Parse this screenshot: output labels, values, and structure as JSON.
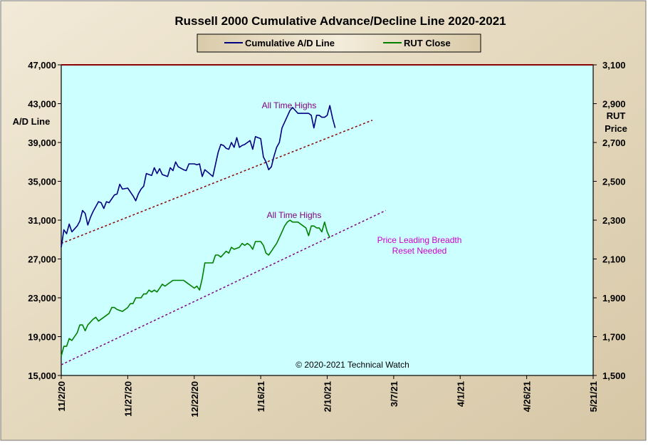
{
  "chart_data": {
    "type": "line",
    "title": "Russell 2000 Cumulative Advance/Decline Line 2020-2021",
    "ylabel_left": "A/D Line",
    "ylabel_right_line1": "RUT",
    "ylabel_right_line2": "Price",
    "ylim_left": [
      15000,
      47000
    ],
    "ylim_right": [
      1500,
      3100
    ],
    "yticks_left": [
      "15,000",
      "19,000",
      "23,000",
      "27,000",
      "31,000",
      "35,000",
      "39,000",
      "43,000",
      "47,000"
    ],
    "yticks_right": [
      "1,500",
      "1,700",
      "1,900",
      "2,100",
      "2,300",
      "2,500",
      "2,700",
      "2,900",
      "3,100"
    ],
    "xticks": [
      "11/2/20",
      "11/27/20",
      "12/22/20",
      "1/16/21",
      "2/10/21",
      "3/7/21",
      "4/1/21",
      "4/26/21",
      "5/21/21"
    ],
    "xlim_days": [
      0,
      200
    ],
    "legend": {
      "ad_label": "Cumulative A/D Line",
      "rut_label": "RUT Close",
      "ad_color": "#000080",
      "rut_color": "#008000"
    },
    "colors": {
      "plot_bg": "#ccffff",
      "frame_bg": "#e9dfc8",
      "topline": "#8b0000",
      "trend_ad": "#8b0000",
      "trend_rut": "#800080",
      "annot_purple": "#800080",
      "annot_magenta": "#cc00cc"
    },
    "series": [
      {
        "name": "Cumulative A/D Line",
        "axis": "left",
        "points": [
          [
            0,
            28200
          ],
          [
            1,
            30000
          ],
          [
            2,
            29600
          ],
          [
            3,
            30600
          ],
          [
            4,
            29800
          ],
          [
            6,
            30400
          ],
          [
            7,
            30900
          ],
          [
            8,
            32000
          ],
          [
            9,
            31700
          ],
          [
            10,
            30500
          ],
          [
            11,
            31300
          ],
          [
            12,
            31900
          ],
          [
            14,
            32900
          ],
          [
            15,
            32800
          ],
          [
            16,
            32200
          ],
          [
            17,
            32900
          ],
          [
            18,
            32800
          ],
          [
            20,
            33600
          ],
          [
            21,
            33700
          ],
          [
            22,
            34700
          ],
          [
            23,
            34200
          ],
          [
            25,
            34300
          ],
          [
            27,
            33500
          ],
          [
            28,
            33000
          ],
          [
            29,
            33700
          ],
          [
            30,
            34200
          ],
          [
            31,
            34500
          ],
          [
            32,
            35800
          ],
          [
            33,
            35700
          ],
          [
            34,
            35600
          ],
          [
            35,
            36400
          ],
          [
            36,
            35800
          ],
          [
            37,
            36300
          ],
          [
            38,
            35700
          ],
          [
            40,
            35500
          ],
          [
            41,
            36400
          ],
          [
            42,
            36100
          ],
          [
            43,
            37000
          ],
          [
            44,
            36500
          ],
          [
            46,
            36200
          ],
          [
            47,
            36100
          ],
          [
            48,
            36800
          ],
          [
            50,
            36800
          ],
          [
            51,
            36700
          ],
          [
            52,
            36800
          ],
          [
            53,
            35500
          ],
          [
            54,
            36200
          ],
          [
            57,
            35500
          ],
          [
            59,
            38000
          ],
          [
            60,
            38800
          ],
          [
            61,
            38700
          ],
          [
            62,
            38400
          ],
          [
            63,
            38300
          ],
          [
            64,
            39000
          ],
          [
            65,
            38500
          ],
          [
            66,
            39500
          ],
          [
            67,
            38500
          ],
          [
            68,
            38700
          ],
          [
            69,
            38800
          ],
          [
            70,
            39000
          ],
          [
            71,
            39200
          ],
          [
            72,
            38300
          ],
          [
            73,
            39600
          ],
          [
            74,
            39500
          ],
          [
            75,
            39400
          ],
          [
            76,
            37500
          ],
          [
            77,
            37000
          ],
          [
            78,
            36200
          ],
          [
            79,
            36500
          ],
          [
            80,
            37600
          ],
          [
            81,
            38500
          ],
          [
            82,
            39000
          ],
          [
            83,
            40500
          ],
          [
            85,
            41700
          ],
          [
            86,
            42300
          ],
          [
            87,
            42600
          ],
          [
            88,
            42300
          ],
          [
            89,
            42000
          ],
          [
            90,
            42000
          ],
          [
            91,
            42000
          ],
          [
            93,
            42000
          ],
          [
            94,
            41800
          ],
          [
            95,
            40500
          ],
          [
            96,
            41800
          ],
          [
            97,
            41800
          ],
          [
            98,
            41600
          ],
          [
            99,
            41600
          ],
          [
            100,
            41800
          ],
          [
            101,
            42800
          ],
          [
            102,
            41500
          ],
          [
            103,
            40500
          ]
        ]
      },
      {
        "name": "RUT Close",
        "axis": "right",
        "points": [
          [
            0,
            1600
          ],
          [
            1,
            1650
          ],
          [
            2,
            1650
          ],
          [
            3,
            1690
          ],
          [
            4,
            1680
          ],
          [
            6,
            1720
          ],
          [
            7,
            1760
          ],
          [
            8,
            1760
          ],
          [
            9,
            1730
          ],
          [
            10,
            1760
          ],
          [
            12,
            1790
          ],
          [
            13,
            1800
          ],
          [
            14,
            1780
          ],
          [
            16,
            1800
          ],
          [
            18,
            1820
          ],
          [
            19,
            1850
          ],
          [
            20,
            1850
          ],
          [
            21,
            1840
          ],
          [
            23,
            1830
          ],
          [
            25,
            1850
          ],
          [
            26,
            1870
          ],
          [
            27,
            1870
          ],
          [
            28,
            1900
          ],
          [
            29,
            1900
          ],
          [
            30,
            1900
          ],
          [
            31,
            1920
          ],
          [
            32,
            1920
          ],
          [
            33,
            1940
          ],
          [
            34,
            1930
          ],
          [
            35,
            1940
          ],
          [
            36,
            1930
          ],
          [
            37,
            1950
          ],
          [
            38,
            1970
          ],
          [
            39,
            1960
          ],
          [
            40,
            1970
          ],
          [
            42,
            1990
          ],
          [
            43,
            1990
          ],
          [
            44,
            1990
          ],
          [
            46,
            1990
          ],
          [
            47,
            1980
          ],
          [
            49,
            1960
          ],
          [
            50,
            1950
          ],
          [
            51,
            1960
          ],
          [
            52,
            1940
          ],
          [
            53,
            2000
          ],
          [
            54,
            2080
          ],
          [
            55,
            2080
          ],
          [
            56,
            2080
          ],
          [
            57,
            2080
          ],
          [
            58,
            2120
          ],
          [
            59,
            2120
          ],
          [
            60,
            2110
          ],
          [
            62,
            2140
          ],
          [
            63,
            2130
          ],
          [
            64,
            2160
          ],
          [
            65,
            2150
          ],
          [
            67,
            2160
          ],
          [
            68,
            2180
          ],
          [
            69,
            2170
          ],
          [
            70,
            2180
          ],
          [
            71,
            2170
          ],
          [
            72,
            2150
          ],
          [
            73,
            2190
          ],
          [
            74,
            2190
          ],
          [
            75,
            2190
          ],
          [
            76,
            2170
          ],
          [
            77,
            2130
          ],
          [
            78,
            2120
          ],
          [
            79,
            2140
          ],
          [
            80,
            2160
          ],
          [
            81,
            2180
          ],
          [
            83,
            2240
          ],
          [
            84,
            2270
          ],
          [
            85,
            2290
          ],
          [
            86,
            2300
          ],
          [
            87,
            2290
          ],
          [
            88,
            2290
          ],
          [
            89,
            2290
          ],
          [
            90,
            2280
          ],
          [
            91,
            2270
          ],
          [
            92,
            2260
          ],
          [
            93,
            2220
          ],
          [
            94,
            2270
          ],
          [
            95,
            2270
          ],
          [
            96,
            2260
          ],
          [
            97,
            2260
          ],
          [
            98,
            2240
          ],
          [
            99,
            2290
          ],
          [
            100,
            2240
          ],
          [
            101,
            2210
          ]
        ]
      }
    ],
    "trendlines": [
      {
        "name": "A/D support trend",
        "axis": "left",
        "from": [
          0,
          28600
        ],
        "to": [
          117,
          41300
        ]
      },
      {
        "name": "RUT support trend",
        "axis": "right",
        "from": [
          0,
          1555
        ],
        "to": [
          122,
          2350
        ]
      }
    ],
    "annotations": {
      "ad_highs": "All Time Highs",
      "rut_highs": "All Time Highs",
      "breadth_line1": "Price Leading  Breadth",
      "breadth_line2": "Reset  Needed",
      "copyright": "© 2020-2021  Technical Watch"
    }
  }
}
